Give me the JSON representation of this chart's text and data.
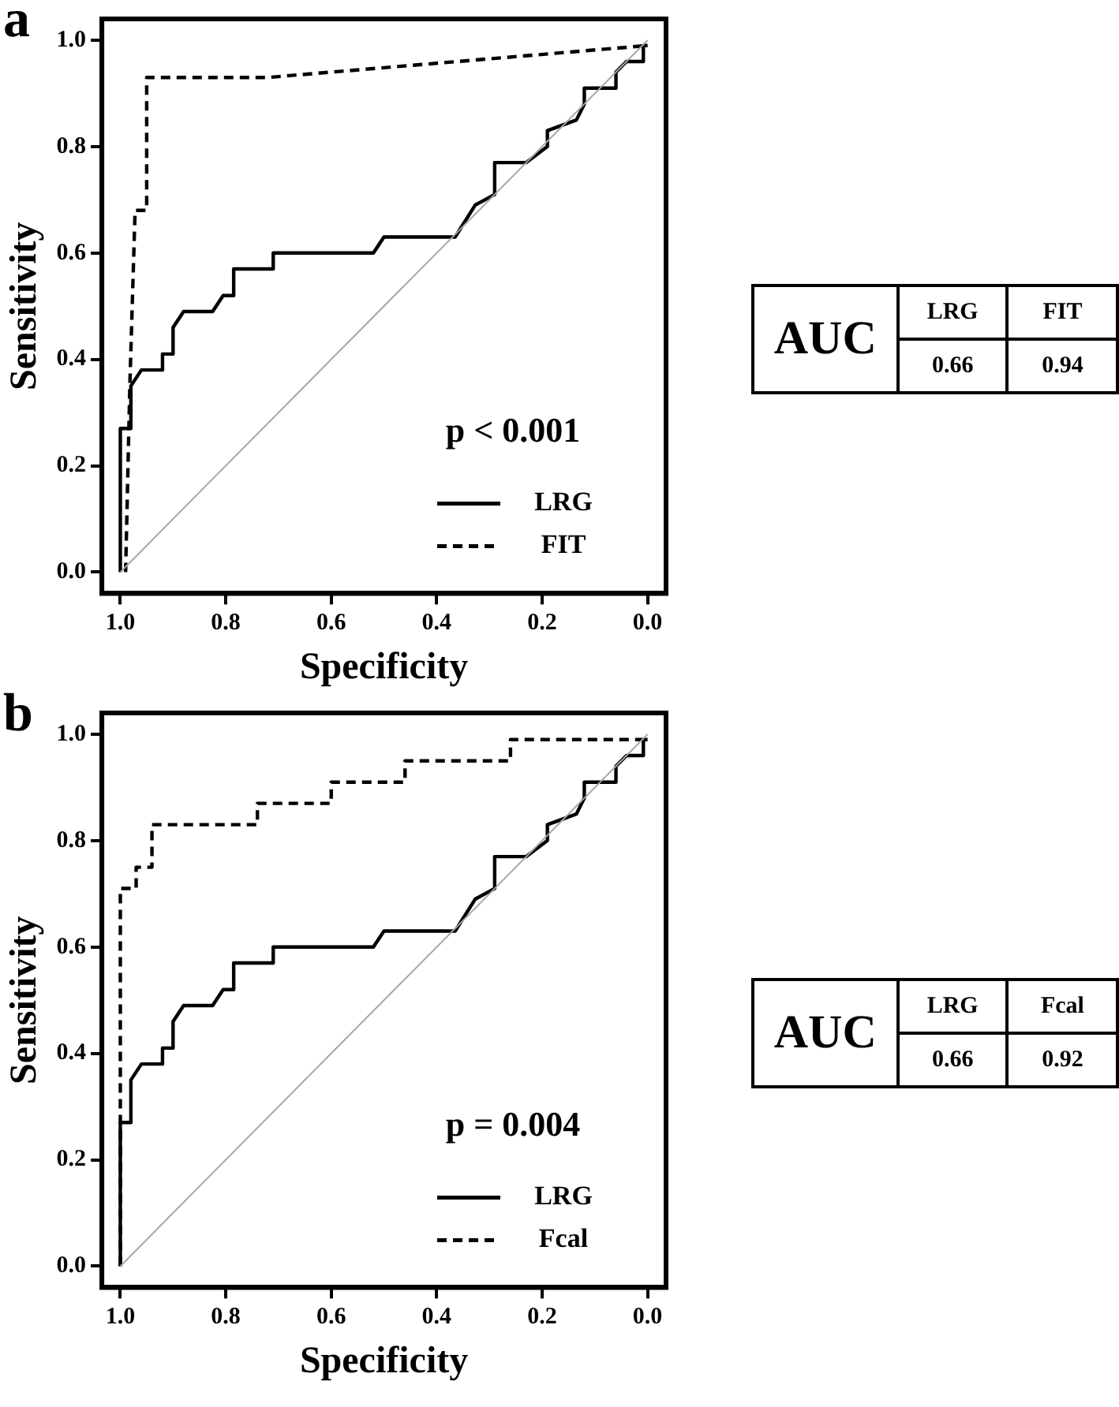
{
  "chart_data": [
    {
      "type": "line",
      "title": "a",
      "xlabel": "Specificity",
      "ylabel": "Sensitivity",
      "xlim": [
        1.035,
        -0.035
      ],
      "ylim": [
        -0.04,
        1.04
      ],
      "xticks": [
        {
          "value": 1,
          "label": "1.0"
        },
        {
          "value": 0.8,
          "label": "0.8"
        },
        {
          "value": 0.6,
          "label": "0.6"
        },
        {
          "value": 0.4,
          "label": "0.4"
        },
        {
          "value": 0.2,
          "label": "0.2"
        },
        {
          "value": 0,
          "label": "0.0"
        }
      ],
      "yticks": [
        {
          "value": 0,
          "label": "0.0"
        },
        {
          "value": 0.2,
          "label": "0.2"
        },
        {
          "value": 0.4,
          "label": "0.4"
        },
        {
          "value": 0.6,
          "label": "0.6"
        },
        {
          "value": 0.8,
          "label": "0.8"
        },
        {
          "value": 1,
          "label": "1.0"
        }
      ],
      "grid": false,
      "legend": "bottom right",
      "marker": "none",
      "annotations": [
        "p < 0.001"
      ],
      "series": [
        {
          "color": "#a6a6a6",
          "line_style": "solid",
          "x": [
            1,
            0
          ],
          "values": [
            0,
            1
          ]
        },
        {
          "name": "LRG",
          "color": "#000000",
          "line_style": "solid",
          "x": [
            1,
            1,
            0.98,
            0.98,
            0.96,
            0.92,
            0.92,
            0.9,
            0.9,
            0.88,
            0.825,
            0.805,
            0.785,
            0.785,
            0.71,
            0.71,
            0.52,
            0.5,
            0.365,
            0.327,
            0.29,
            0.29,
            0.23,
            0.19,
            0.19,
            0.135,
            0.12,
            0.12,
            0.06,
            0.06,
            0.04,
            0.008,
            0.008,
            0
          ],
          "values": [
            0,
            0.27,
            0.27,
            0.35,
            0.38,
            0.38,
            0.41,
            0.41,
            0.46,
            0.49,
            0.49,
            0.52,
            0.52,
            0.57,
            0.57,
            0.6,
            0.6,
            0.63,
            0.63,
            0.69,
            0.71,
            0.77,
            0.77,
            0.8,
            0.83,
            0.85,
            0.88,
            0.91,
            0.91,
            0.94,
            0.96,
            0.96,
            0.99,
            0.99
          ]
        },
        {
          "name": "FIT",
          "color": "#000000",
          "line_style": "dashed",
          "x": [
            0.99,
            0.982,
            0.972,
            0.95,
            0.95,
            0.72,
            0.36,
            0
          ],
          "values": [
            0,
            0.35,
            0.68,
            0.68,
            0.93,
            0.93,
            0.96,
            0.99
          ]
        }
      ]
    },
    {
      "type": "other",
      "annotations": [
        "AUC",
        "LRG",
        "FIT",
        "0.66",
        "0.94"
      ]
    },
    {
      "type": "line",
      "title": "b",
      "xlabel": "Specificity",
      "ylabel": "Sensitivity",
      "xlim": [
        1.035,
        -0.035
      ],
      "ylim": [
        -0.04,
        1.04
      ],
      "xticks": [
        {
          "value": 1,
          "label": "1.0"
        },
        {
          "value": 0.8,
          "label": "0.8"
        },
        {
          "value": 0.6,
          "label": "0.6"
        },
        {
          "value": 0.4,
          "label": "0.4"
        },
        {
          "value": 0.2,
          "label": "0.2"
        },
        {
          "value": 0,
          "label": "0.0"
        }
      ],
      "yticks": [
        {
          "value": 0,
          "label": "0.0"
        },
        {
          "value": 0.2,
          "label": "0.2"
        },
        {
          "value": 0.4,
          "label": "0.4"
        },
        {
          "value": 0.6,
          "label": "0.6"
        },
        {
          "value": 0.8,
          "label": "0.8"
        },
        {
          "value": 1,
          "label": "1.0"
        }
      ],
      "grid": false,
      "legend": "bottom right",
      "marker": "none",
      "annotations": [
        "p = 0.004"
      ],
      "series": [
        {
          "color": "#a6a6a6",
          "line_style": "solid",
          "x": [
            1,
            0
          ],
          "values": [
            0,
            1
          ]
        },
        {
          "name": "LRG",
          "color": "#000000",
          "line_style": "solid",
          "x": [
            1,
            1,
            0.98,
            0.98,
            0.96,
            0.92,
            0.92,
            0.9,
            0.9,
            0.88,
            0.825,
            0.805,
            0.785,
            0.785,
            0.71,
            0.71,
            0.52,
            0.5,
            0.365,
            0.327,
            0.29,
            0.29,
            0.23,
            0.19,
            0.19,
            0.135,
            0.12,
            0.12,
            0.06,
            0.06,
            0.04,
            0.008,
            0.008,
            0
          ],
          "values": [
            0,
            0.27,
            0.27,
            0.35,
            0.38,
            0.38,
            0.41,
            0.41,
            0.46,
            0.49,
            0.49,
            0.52,
            0.52,
            0.57,
            0.57,
            0.6,
            0.6,
            0.63,
            0.63,
            0.69,
            0.71,
            0.77,
            0.77,
            0.8,
            0.83,
            0.85,
            0.88,
            0.91,
            0.91,
            0.94,
            0.96,
            0.96,
            0.99,
            0.99
          ]
        },
        {
          "name": "Fcal",
          "color": "#000000",
          "line_style": "dashed",
          "x": [
            1,
            1,
            0.97,
            0.97,
            0.94,
            0.94,
            0.74,
            0.74,
            0.6,
            0.6,
            0.46,
            0.46,
            0.26,
            0.26,
            0
          ],
          "values": [
            0,
            0.71,
            0.71,
            0.75,
            0.75,
            0.83,
            0.83,
            0.87,
            0.87,
            0.91,
            0.91,
            0.95,
            0.95,
            0.99,
            0.99
          ]
        }
      ]
    },
    {
      "type": "other",
      "annotations": [
        "AUC",
        "LRG",
        "Fcal",
        "0.66",
        "0.92"
      ]
    }
  ]
}
